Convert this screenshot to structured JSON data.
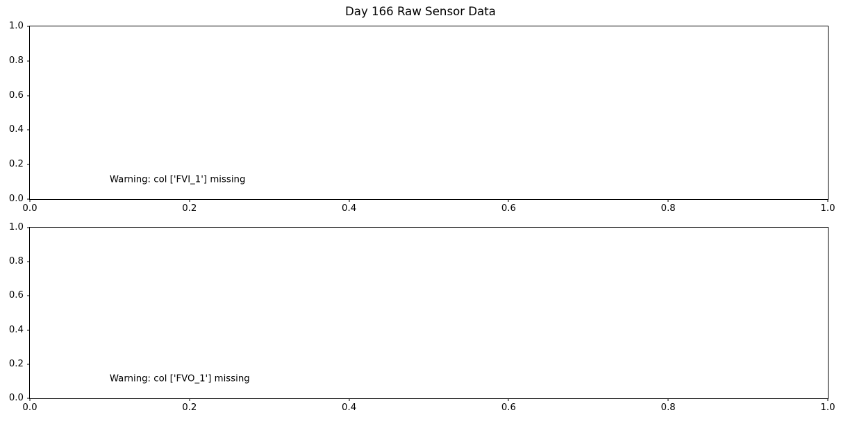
{
  "figure": {
    "title": "Day 166 Raw Sensor Data",
    "background_color": "#ffffff",
    "spine_color": "#000000",
    "text_color": "#000000"
  },
  "chart_data": [
    {
      "type": "line",
      "title": "",
      "xlabel": "",
      "ylabel": "",
      "series": [],
      "xlim": [
        0.0,
        1.0
      ],
      "ylim": [
        0.0,
        1.0
      ],
      "xticks": [
        0.0,
        0.2,
        0.4,
        0.6,
        0.8,
        1.0
      ],
      "yticks": [
        0.0,
        0.2,
        0.4,
        0.6,
        0.8,
        1.0
      ],
      "xtick_labels": [
        "0.0",
        "0.2",
        "0.4",
        "0.6",
        "0.8",
        "1.0"
      ],
      "ytick_labels": [
        "0.0",
        "0.2",
        "0.4",
        "0.6",
        "0.8",
        "1.0"
      ],
      "grid": false,
      "legend": null,
      "annotation": {
        "text": "Warning: col ['FVI_1'] missing",
        "x": 0.1,
        "y": 0.1
      }
    },
    {
      "type": "line",
      "title": "",
      "xlabel": "",
      "ylabel": "",
      "series": [],
      "xlim": [
        0.0,
        1.0
      ],
      "ylim": [
        0.0,
        1.0
      ],
      "xticks": [
        0.0,
        0.2,
        0.4,
        0.6,
        0.8,
        1.0
      ],
      "yticks": [
        0.0,
        0.2,
        0.4,
        0.6,
        0.8,
        1.0
      ],
      "xtick_labels": [
        "0.0",
        "0.2",
        "0.4",
        "0.6",
        "0.8",
        "1.0"
      ],
      "ytick_labels": [
        "0.0",
        "0.2",
        "0.4",
        "0.6",
        "0.8",
        "1.0"
      ],
      "grid": false,
      "legend": null,
      "annotation": {
        "text": "Warning: col ['FVO_1'] missing",
        "x": 0.1,
        "y": 0.1
      }
    }
  ]
}
